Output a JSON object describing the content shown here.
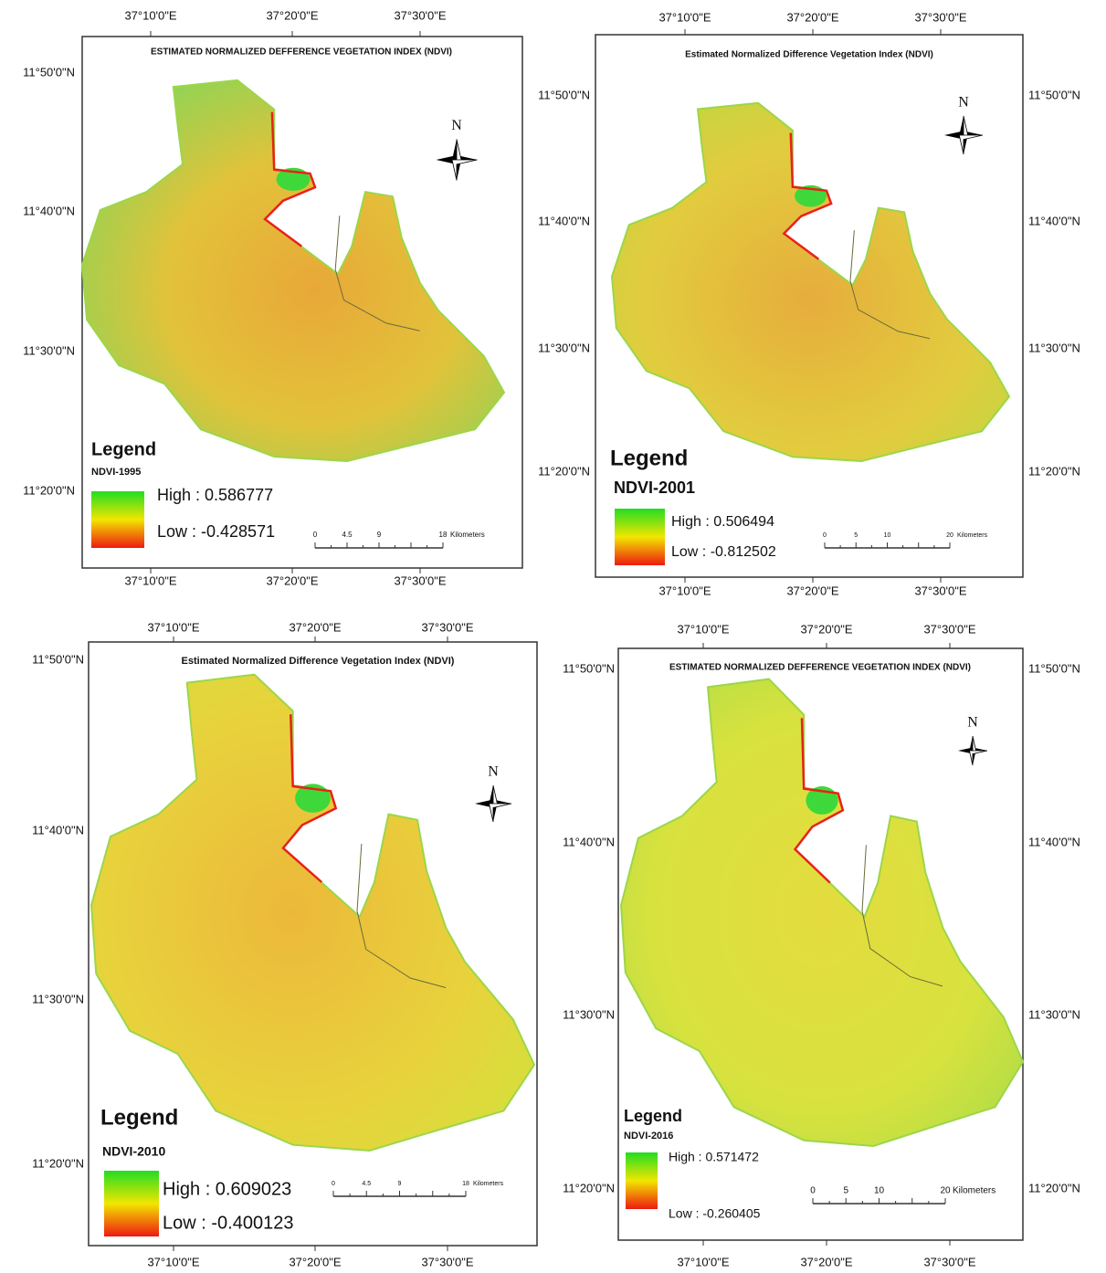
{
  "panels": [
    {
      "title": "ESTIMATED NORMALIZED DEFFERENCE VEGETATION INDEX (NDVI)",
      "north": "N",
      "legend_title": "Legend",
      "layer": "NDVI-1995",
      "high": "High : 0.586777",
      "low": "Low : -0.428571",
      "scale_labels": [
        "0",
        "4.5",
        "9",
        "18"
      ],
      "scale_unit": "Kilometers",
      "x_labels_top": [
        "37°10'0\"E",
        "37°20'0\"E",
        "37°30'0\"E"
      ],
      "x_labels_bottom": [
        "37°10'0\"E",
        "37°20'0\"E",
        "37°30'0\"E"
      ],
      "y_labels_left": [
        "11°50'0\"N",
        "11°40'0\"N",
        "11°30'0\"N",
        "11°20'0\"N"
      ]
    },
    {
      "title": "Estimated Normalized Difference Vegetation Index (NDVI)",
      "north": "N",
      "legend_title": "Legend",
      "layer": "NDVI-2001",
      "high": "High : 0.506494",
      "low": "Low : -0.812502",
      "scale_labels": [
        "0",
        "5",
        "10",
        "20"
      ],
      "scale_unit": "Kilometers",
      "x_labels_top": [
        "37°10'0\"E",
        "37°20'0\"E",
        "37°30'0\"E"
      ],
      "x_labels_bottom": [
        "37°10'0\"E",
        "37°20'0\"E",
        "37°30'0\"E"
      ],
      "y_labels_left": [
        "11°50'0\"N",
        "11°40'0\"N",
        "11°30'0\"N",
        "11°20'0\"N"
      ],
      "y_labels_right": [
        "11°50'0\"N",
        "11°40'0\"N",
        "11°30'0\"N",
        "11°20'0\"N"
      ]
    },
    {
      "title": "Estimated Normalized Difference Vegetation Index (NDVI)",
      "north": "N",
      "legend_title": "Legend",
      "layer": "NDVI-2010",
      "high": "High : 0.609023",
      "low": "Low : -0.400123",
      "scale_labels": [
        "0",
        "4.5",
        "9",
        "18"
      ],
      "scale_unit": "Kilometers",
      "x_labels_top": [
        "37°10'0\"E",
        "37°20'0\"E",
        "37°30'0\"E"
      ],
      "x_labels_bottom": [
        "37°10'0\"E",
        "37°20'0\"E",
        "37°30'0\"E"
      ],
      "y_labels_left": [
        "11°50'0\"N",
        "11°40'0\"N",
        "11°30'0\"N",
        "11°20'0\"N"
      ]
    },
    {
      "title": "ESTIMATED NORMALIZED DEFFERENCE VEGETATION INDEX (NDVI)",
      "north": "N",
      "legend_title": "Legend",
      "layer": "NDVI-2016",
      "high": "High : 0.571472",
      "low": "Low : -0.260405",
      "scale_labels": [
        "0",
        "5",
        "10",
        "20"
      ],
      "scale_unit": "Kilometers",
      "x_labels_top": [
        "37°10'0\"E",
        "37°20'0\"E",
        "37°30'0\"E"
      ],
      "x_labels_bottom": [
        "37°10'0\"E",
        "37°20'0\"E",
        "37°30'0\"E"
      ],
      "y_labels_left": [
        "11°50'0\"N",
        "11°40'0\"N",
        "11°30'0\"N",
        "11°20'0\"N"
      ],
      "y_labels_right": [
        "11°50'0\"N",
        "11°40'0\"N",
        "11°30'0\"N",
        "11°20'0\"N"
      ]
    }
  ]
}
